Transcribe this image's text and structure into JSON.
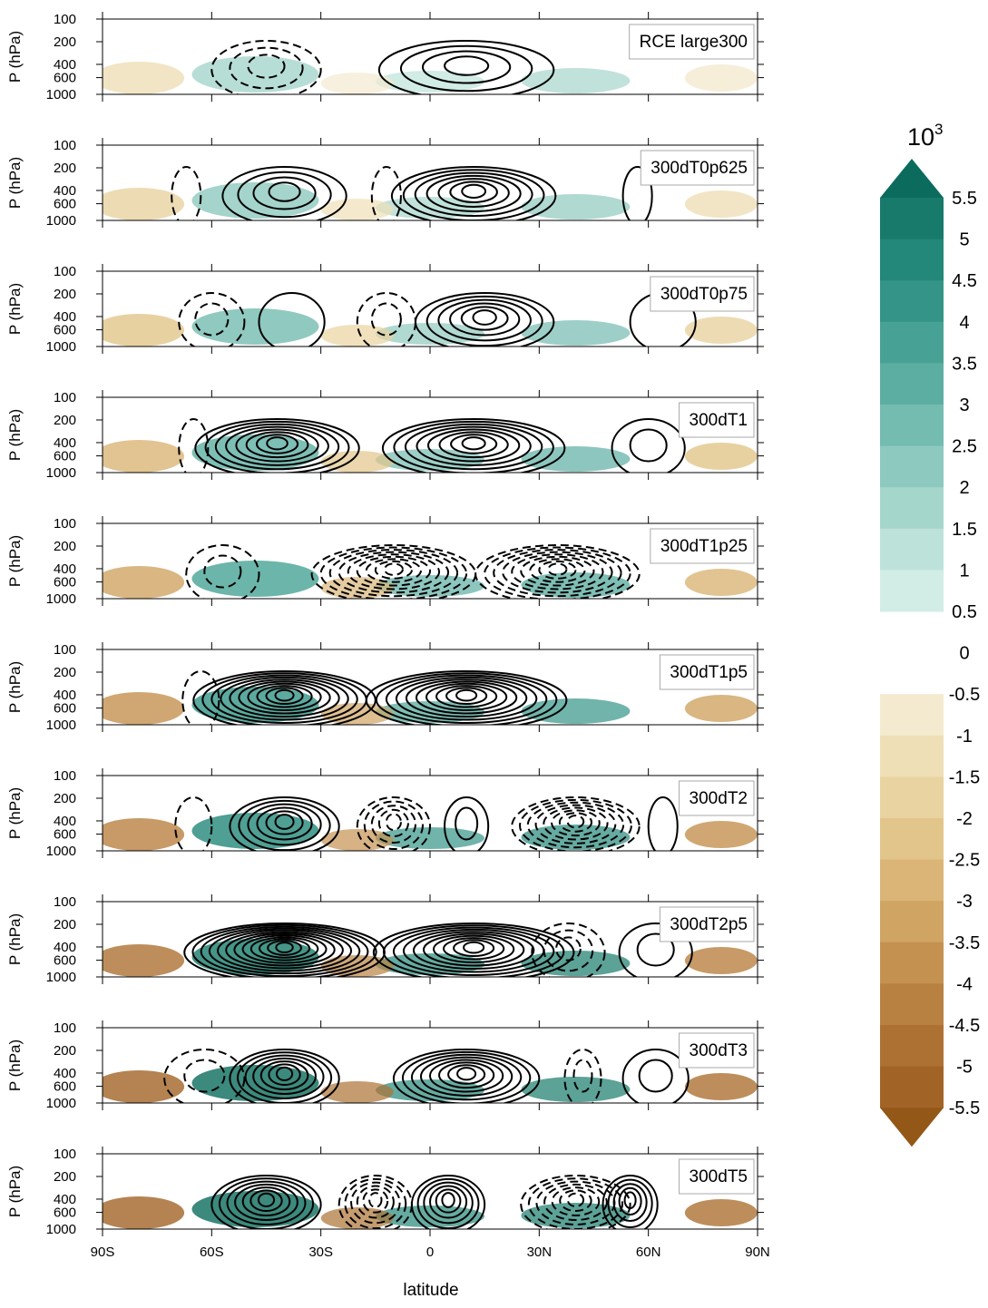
{
  "chart_data": {
    "type": "contour",
    "xlabel": "latitude",
    "ylabel": "P (hPa)",
    "xlim": [
      -90,
      90
    ],
    "xticks": [
      {
        "value": -90,
        "label": "90S"
      },
      {
        "value": -60,
        "label": "60S"
      },
      {
        "value": -30,
        "label": "30S"
      },
      0,
      {
        "value": 30,
        "label": "30N"
      },
      {
        "value": 60,
        "label": "60N"
      },
      {
        "value": 90,
        "label": "90N"
      }
    ],
    "ylim": [
      1000,
      100
    ],
    "yticks": [
      100,
      200,
      400,
      600,
      1000
    ],
    "log_y": true,
    "panels": [
      "RCE large300",
      "300dT0p625",
      "300dT0p75",
      "300dT1",
      "300dT1p25",
      "300dT1p5",
      "300dT2",
      "300dT2p5",
      "300dT3",
      "300dT5"
    ],
    "colorbar": {
      "title_base": "10",
      "title_exp": "3",
      "levels": [
        5.5,
        5,
        4.5,
        4,
        3.5,
        3,
        2.5,
        2,
        1.5,
        1,
        0.5,
        0,
        -0.5,
        -1,
        -1.5,
        -2,
        -2.5,
        -3,
        -3.5,
        -4,
        -4.5,
        -5,
        -5.5
      ],
      "colors_pos": [
        "#0b6b5c",
        "#177a6b",
        "#238779",
        "#339487",
        "#47a295",
        "#5daea2",
        "#74bbb0",
        "#8dc9be",
        "#a5d6cc",
        "#bde2da",
        "#d2ece6"
      ],
      "colors_neg": [
        "#f4ead0",
        "#efdfb6",
        "#e9d3a0",
        "#e2c58a",
        "#dab577",
        "#d0a463",
        "#c49150",
        "#b98141",
        "#ad7233",
        "#a16426",
        "#935717"
      ]
    }
  }
}
